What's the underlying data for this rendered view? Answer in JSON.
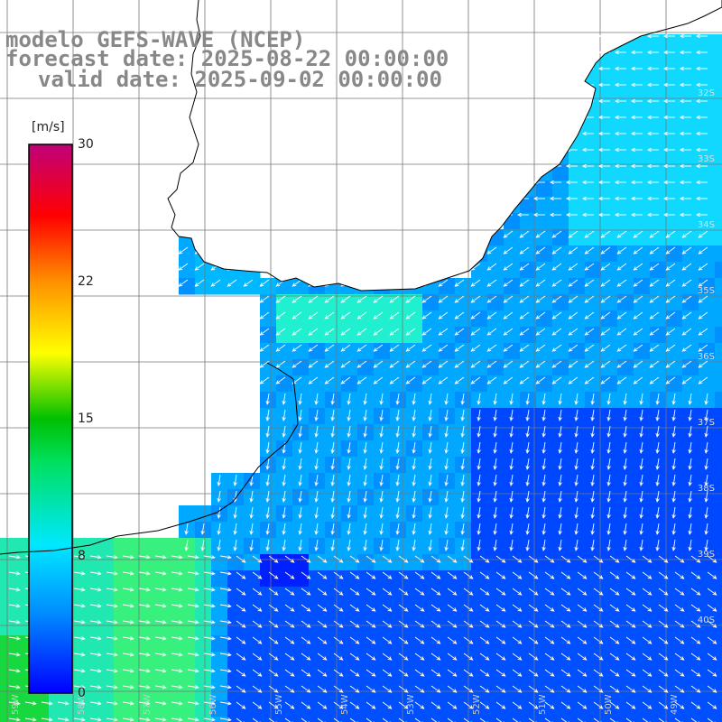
{
  "title": {
    "line1": "modelo GEFS-WAVE (NCEP)",
    "line2": "forecast date: 2025-08-22 00:00:00",
    "line3": "valid date: 2025-09-02 00:00:00"
  },
  "colorbar": {
    "unit": "[m/s]",
    "ticks": [
      "30",
      "22",
      "15",
      "8",
      "0"
    ],
    "tick_values": [
      30,
      22,
      15,
      8,
      0
    ],
    "colors": [
      "#0000ff",
      "#0090ff",
      "#00e8ff",
      "#00e060",
      "#00c000",
      "#ffff00",
      "#ff9000",
      "#ff0000",
      "#c0007a"
    ]
  },
  "lat_labels": [
    "32S",
    "33S",
    "34S",
    "35S",
    "36S",
    "37S",
    "38S",
    "39S",
    "40S"
  ],
  "lon_labels": [
    "59W",
    "58W",
    "57W",
    "56W",
    "55W",
    "54W",
    "53W",
    "52W",
    "51W",
    "50W",
    "49W"
  ]
}
